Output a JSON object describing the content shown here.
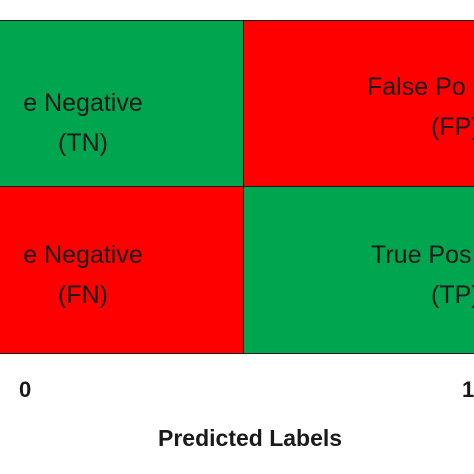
{
  "colors": {
    "correct": "#00a64f",
    "incorrect": "#ff0000"
  },
  "matrix": {
    "tn": {
      "line1": "e Negative",
      "line2": "(TN)"
    },
    "fp": {
      "line1": "False Po",
      "line2": "(FP)"
    },
    "fn": {
      "line1": "e Negative",
      "line2": "(FN)"
    },
    "tp": {
      "line1": "True Pos",
      "line2": "(TP)"
    }
  },
  "x_axis": {
    "ticks": [
      "0",
      "1"
    ],
    "label": "Predicted Labels"
  }
}
